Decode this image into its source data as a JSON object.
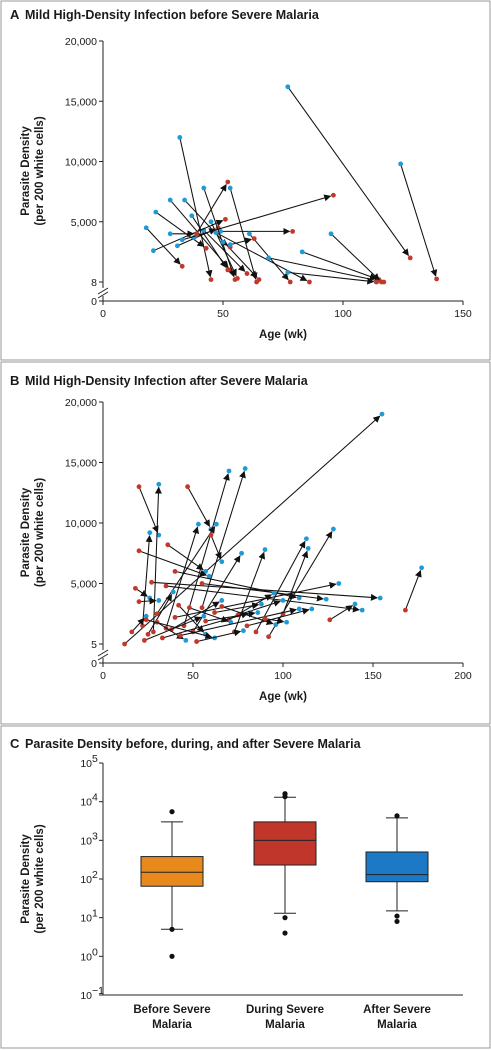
{
  "colors": {
    "blue_point": "#1f9ad6",
    "red_point": "#c0392b",
    "before_box": "#e8891d",
    "during_box": "#c1362a",
    "after_box": "#1b79c6",
    "panel_border": "#9a9a9a"
  },
  "chart_data": [
    {
      "type": "scatter",
      "letter": "A",
      "title": "Mild High-Density Infection before Severe Malaria",
      "xlabel": "Age (wk)",
      "ylabel_line1": "Parasite Density",
      "ylabel_line2": "(per 200 white cells)",
      "xlim": [
        0,
        150
      ],
      "ylim": [
        0,
        20000
      ],
      "xticks": [
        0,
        50,
        100,
        150
      ],
      "ytick_labels": [
        "0",
        "8",
        "5,000",
        "10,000",
        "15,000",
        "20,000"
      ],
      "axis_break": true,
      "grid": false,
      "series": [],
      "pairs": [
        {
          "from": [
            77,
            16200
          ],
          "to": [
            128,
            2000
          ]
        },
        {
          "from": [
            124,
            9800
          ],
          "to": [
            139,
            250
          ]
        },
        {
          "from": [
            32,
            12000
          ],
          "to": [
            45,
            200
          ]
        },
        {
          "from": [
            28,
            6800
          ],
          "to": [
            53,
            1000
          ]
        },
        {
          "from": [
            34,
            6800
          ],
          "to": [
            65,
            200
          ]
        },
        {
          "from": [
            37,
            5500
          ],
          "to": [
            52,
            1000
          ]
        },
        {
          "from": [
            42,
            4300
          ],
          "to": [
            60,
            700
          ]
        },
        {
          "from": [
            22,
            5800
          ],
          "to": [
            43,
            2800
          ]
        },
        {
          "from": [
            18,
            4500
          ],
          "to": [
            33,
            1300
          ]
        },
        {
          "from": [
            21,
            2600
          ],
          "to": [
            51,
            5200
          ]
        },
        {
          "from": [
            31,
            3000
          ],
          "to": [
            48,
            4500
          ]
        },
        {
          "from": [
            49,
            4200
          ],
          "to": [
            79,
            4200
          ]
        },
        {
          "from": [
            42,
            7800
          ],
          "to": [
            55,
            200
          ]
        },
        {
          "from": [
            45,
            5000
          ],
          "to": [
            56,
            300
          ]
        },
        {
          "from": [
            47,
            4100
          ],
          "to": [
            86,
            0
          ]
        },
        {
          "from": [
            53,
            7800
          ],
          "to": [
            64,
            0
          ]
        },
        {
          "from": [
            61,
            4000
          ],
          "to": [
            78,
            0
          ]
        },
        {
          "from": [
            69,
            2000
          ],
          "to": [
            117,
            0
          ]
        },
        {
          "from": [
            77,
            800
          ],
          "to": [
            114,
            0
          ]
        },
        {
          "from": [
            83,
            2500
          ],
          "to": [
            115,
            200
          ]
        },
        {
          "from": [
            95,
            4000
          ],
          "to": [
            116,
            0
          ]
        },
        {
          "from": [
            38,
            3700
          ],
          "to": [
            52,
            8300
          ]
        },
        {
          "from": [
            33,
            3500
          ],
          "to": [
            96,
            7200
          ]
        },
        {
          "from": [
            50,
            3300
          ],
          "to": [
            53,
            2900
          ]
        },
        {
          "from": [
            53,
            3100
          ],
          "to": [
            63,
            3600
          ]
        },
        {
          "from": [
            28,
            4000
          ],
          "to": [
            39,
            4000
          ]
        }
      ]
    },
    {
      "type": "scatter",
      "letter": "B",
      "title": "Mild High-Density Infection after Severe Malaria",
      "xlabel": "Age (wk)",
      "ylabel_line1": "Parasite Density",
      "ylabel_line2": "(per 200 white cells)",
      "xlim": [
        0,
        200
      ],
      "ylim": [
        0,
        20000
      ],
      "xticks": [
        0,
        50,
        100,
        150,
        200
      ],
      "ytick_labels": [
        "0",
        "5",
        "5,000",
        "10,000",
        "15,000",
        "20,000"
      ],
      "axis_break": true,
      "grid": false,
      "pairs": [
        {
          "from": [
            12,
            0
          ],
          "to": [
            155,
            19000
          ]
        },
        {
          "from": [
            168,
            2800
          ],
          "to": [
            177,
            6300
          ]
        },
        {
          "from": [
            20,
            13000
          ],
          "to": [
            31,
            9000
          ]
        },
        {
          "from": [
            47,
            13000
          ],
          "to": [
            60,
            9500
          ]
        },
        {
          "from": [
            28,
            1000
          ],
          "to": [
            31,
            13200
          ]
        },
        {
          "from": [
            45,
            1500
          ],
          "to": [
            70,
            14300
          ]
        },
        {
          "from": [
            55,
            3000
          ],
          "to": [
            79,
            14500
          ]
        },
        {
          "from": [
            22,
            1500
          ],
          "to": [
            26,
            9200
          ]
        },
        {
          "from": [
            35,
            1300
          ],
          "to": [
            53,
            9900
          ]
        },
        {
          "from": [
            30,
            2500
          ],
          "to": [
            63,
            9900
          ]
        },
        {
          "from": [
            36,
            8200
          ],
          "to": [
            57,
            6000
          ]
        },
        {
          "from": [
            60,
            9000
          ],
          "to": [
            66,
            6800
          ]
        },
        {
          "from": [
            20,
            7700
          ],
          "to": [
            59,
            5600
          ]
        },
        {
          "from": [
            50,
            1000
          ],
          "to": [
            77,
            7500
          ]
        },
        {
          "from": [
            73,
            1000
          ],
          "to": [
            90,
            7800
          ]
        },
        {
          "from": [
            85,
            1000
          ],
          "to": [
            113,
            8700
          ]
        },
        {
          "from": [
            92,
            600
          ],
          "to": [
            128,
            9500
          ]
        },
        {
          "from": [
            100,
            2500
          ],
          "to": [
            114,
            7900
          ]
        },
        {
          "from": [
            27,
            5100
          ],
          "to": [
            154,
            3800
          ]
        },
        {
          "from": [
            40,
            6000
          ],
          "to": [
            109,
            3800
          ]
        },
        {
          "from": [
            35,
            4800
          ],
          "to": [
            144,
            2800
          ]
        },
        {
          "from": [
            55,
            5000
          ],
          "to": [
            124,
            3700
          ]
        },
        {
          "from": [
            40,
            2200
          ],
          "to": [
            131,
            5000
          ]
        },
        {
          "from": [
            70,
            2000
          ],
          "to": [
            95,
            4200
          ]
        },
        {
          "from": [
            18,
            4600
          ],
          "to": [
            26,
            3800
          ]
        },
        {
          "from": [
            20,
            3500
          ],
          "to": [
            31,
            3600
          ]
        },
        {
          "from": [
            25,
            800
          ],
          "to": [
            39,
            4300
          ]
        },
        {
          "from": [
            38,
            1200
          ],
          "to": [
            66,
            3600
          ]
        },
        {
          "from": [
            62,
            2600
          ],
          "to": [
            88,
            3300
          ]
        },
        {
          "from": [
            75,
            2400
          ],
          "to": [
            100,
            3600
          ]
        },
        {
          "from": [
            80,
            1500
          ],
          "to": [
            116,
            2900
          ]
        },
        {
          "from": [
            30,
            1800
          ],
          "to": [
            46,
            300
          ]
        },
        {
          "from": [
            42,
            3200
          ],
          "to": [
            57,
            800
          ]
        },
        {
          "from": [
            48,
            3000
          ],
          "to": [
            71,
            1800
          ]
        },
        {
          "from": [
            66,
            3100
          ],
          "to": [
            96,
            1600
          ]
        },
        {
          "from": [
            126,
            2000
          ],
          "to": [
            140,
            3300
          ]
        },
        {
          "from": [
            16,
            1000
          ],
          "to": [
            24,
            2300
          ]
        },
        {
          "from": [
            23,
            300
          ],
          "to": [
            56,
            2300
          ]
        },
        {
          "from": [
            33,
            500
          ],
          "to": [
            82,
            2600
          ]
        },
        {
          "from": [
            43,
            700
          ],
          "to": [
            109,
            2900
          ]
        },
        {
          "from": [
            24,
            2000
          ],
          "to": [
            62,
            500
          ]
        },
        {
          "from": [
            57,
            1900
          ],
          "to": [
            86,
            2600
          ]
        },
        {
          "from": [
            90,
            2100
          ],
          "to": [
            102,
            1800
          ]
        },
        {
          "from": [
            52,
            200
          ],
          "to": [
            78,
            1100
          ]
        }
      ]
    },
    {
      "type": "box",
      "letter": "C",
      "title": "Parasite Density before, during, and after Severe Malaria",
      "ylabel_line1": "Parasite Density",
      "ylabel_line2": "(per 200 white cells)",
      "yscale": "log",
      "ylim_exp": [
        -1,
        5
      ],
      "ytick_base": "10",
      "ytick_exponents": [
        "−1",
        "0",
        "1",
        "2",
        "3",
        "4",
        "5"
      ],
      "categories": [
        "Before Severe Malaria",
        "During Severe Malaria",
        "After Severe Malaria"
      ],
      "category_lines": [
        [
          "Before Severe",
          "Malaria"
        ],
        [
          "During Severe",
          "Malaria"
        ],
        [
          "After Severe",
          "Malaria"
        ]
      ],
      "boxes": [
        {
          "whisker_low": 5,
          "q1": 65,
          "median": 150,
          "q3": 380,
          "whisker_high": 3000,
          "outliers": [
            5500,
            5,
            1
          ]
        },
        {
          "whisker_low": 13,
          "q1": 230,
          "median": 1000,
          "q3": 3000,
          "whisker_high": 13000,
          "outliers": [
            16000,
            13500,
            10,
            4
          ]
        },
        {
          "whisker_low": 15,
          "q1": 85,
          "median": 130,
          "q3": 500,
          "whisker_high": 3800,
          "outliers": [
            4300,
            11,
            8
          ]
        }
      ]
    }
  ]
}
